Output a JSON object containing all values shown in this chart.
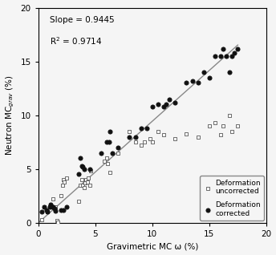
{
  "slope": 0.9445,
  "r_squared": 0.9714,
  "xlabel": "Gravimetric MC ω (%)",
  "ylabel": "Neutron MC$_{grav}$ (%)",
  "xlim": [
    0,
    20
  ],
  "ylim": [
    0,
    20
  ],
  "xticks": [
    0,
    5,
    10,
    15,
    20
  ],
  "yticks": [
    0,
    5,
    10,
    15,
    20
  ],
  "line_x": [
    0,
    17.5
  ],
  "line_y": [
    0,
    16.528
  ],
  "scatter_uncorrected_x": [
    0.3,
    0.5,
    0.8,
    1.0,
    1.1,
    1.3,
    1.5,
    1.6,
    1.7,
    2.0,
    2.1,
    2.2,
    2.3,
    2.5,
    3.5,
    3.7,
    3.8,
    3.9,
    4.0,
    4.1,
    4.2,
    4.3,
    4.4,
    4.5,
    4.6,
    5.8,
    6.0,
    6.1,
    6.3,
    7.0,
    8.0,
    8.5,
    9.0,
    9.3,
    9.8,
    10.0,
    10.5,
    11.0,
    12.0,
    13.0,
    14.0,
    15.0,
    15.5,
    16.0,
    16.2,
    16.8,
    17.0,
    17.5
  ],
  "scatter_uncorrected_y": [
    0.3,
    1.5,
    1.0,
    1.5,
    1.6,
    2.2,
    1.5,
    0.2,
    0.1,
    2.5,
    3.5,
    4.0,
    3.8,
    4.2,
    2.0,
    3.5,
    4.0,
    3.5,
    3.3,
    3.7,
    4.0,
    3.8,
    4.2,
    3.5,
    4.8,
    5.7,
    6.0,
    5.5,
    4.7,
    6.5,
    8.5,
    7.5,
    7.2,
    7.5,
    7.8,
    7.5,
    8.5,
    8.2,
    7.8,
    8.3,
    8.0,
    9.0,
    9.3,
    8.2,
    9.0,
    10.0,
    8.5,
    9.0
  ],
  "scatter_corrected_x": [
    0.3,
    0.5,
    0.7,
    0.8,
    1.0,
    1.1,
    1.2,
    1.3,
    1.4,
    1.5,
    2.0,
    2.2,
    2.5,
    3.5,
    3.7,
    3.8,
    3.9,
    4.0,
    4.5,
    5.5,
    6.0,
    6.2,
    6.3,
    6.5,
    7.0,
    8.0,
    8.5,
    9.0,
    9.5,
    10.0,
    10.5,
    11.0,
    11.2,
    11.5,
    12.0,
    13.0,
    13.5,
    14.0,
    14.5,
    15.0,
    15.5,
    16.0,
    16.2,
    16.5,
    16.8,
    17.0,
    17.2,
    17.5
  ],
  "scatter_corrected_y": [
    1.0,
    1.5,
    1.2,
    1.0,
    1.5,
    1.7,
    1.5,
    1.5,
    1.3,
    1.1,
    1.2,
    1.2,
    1.5,
    4.5,
    6.0,
    5.3,
    5.2,
    5.0,
    5.0,
    6.5,
    7.5,
    7.5,
    8.5,
    6.5,
    7.0,
    8.0,
    8.0,
    8.8,
    8.8,
    10.8,
    11.0,
    10.8,
    11.0,
    11.5,
    11.2,
    13.0,
    13.2,
    13.0,
    14.0,
    13.5,
    15.5,
    15.5,
    16.2,
    15.5,
    14.0,
    15.5,
    15.8,
    16.2
  ],
  "annotation_slope": "Slope = 0.9445",
  "annotation_r2": "R$^2$ = 0.9714",
  "legend_uncorrected": "Deformation\nuncorrected",
  "legend_corrected": "Deformation\ncorrected",
  "line_color": "#888888",
  "scatter_uncorrected_color": "#555555",
  "scatter_corrected_color": "#111111",
  "background_color": "#f5f5f5"
}
